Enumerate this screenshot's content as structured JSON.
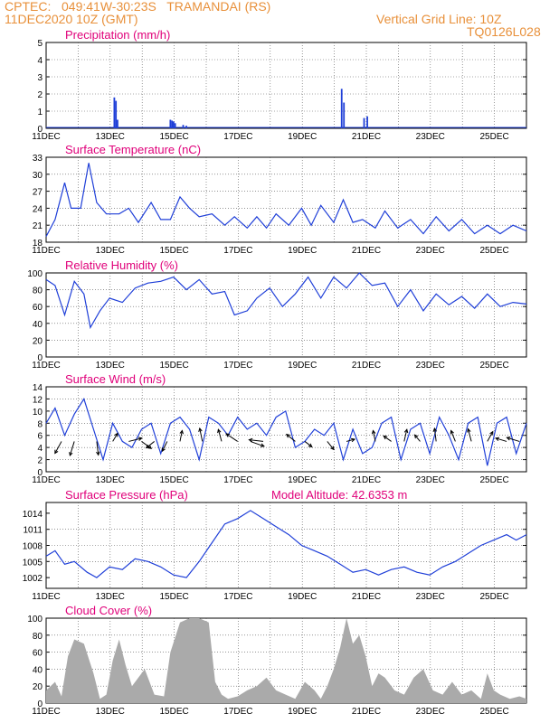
{
  "header": {
    "line1": "CPTEC:   049:41W-30:23S   TRAMANDAI (RS)",
    "line2": "11DEC2020 10Z (GMT)",
    "vgrid": "Vertical Grid Line: 10Z",
    "code": "TQ0126L028"
  },
  "colors": {
    "header": "#e8903a",
    "title": "#e0007a",
    "line": "#1f3fd8",
    "bar": "#1f3fd8",
    "cloud": "#aaaaaa"
  },
  "chart_data": [
    {
      "type": "bar",
      "title": "Precipitation (mm/h)",
      "x_tick_labels": [
        "11DEC",
        "13DEC",
        "15DEC",
        "17DEC",
        "19DEC",
        "21DEC",
        "23DEC",
        "25DEC"
      ],
      "x_range_days": [
        11.42,
        26.42
      ],
      "ylim": [
        0,
        5
      ],
      "y_ticks": [
        "0",
        "1",
        "2",
        "3",
        "4",
        "5"
      ],
      "x": [
        13.55,
        13.6,
        13.65,
        15.3,
        15.35,
        15.4,
        15.45,
        15.7,
        15.8,
        20.65,
        20.72,
        21.35,
        21.45
      ],
      "values": [
        1.8,
        1.6,
        0.5,
        0.5,
        0.45,
        0.4,
        0.3,
        0.2,
        0.15,
        2.3,
        1.5,
        0.6,
        0.7
      ]
    },
    {
      "type": "line",
      "title": "Surface Temperature (nC)",
      "x_tick_labels": [
        "11DEC",
        "13DEC",
        "15DEC",
        "17DEC",
        "19DEC",
        "21DEC",
        "23DEC",
        "25DEC"
      ],
      "x_range_days": [
        11.42,
        26.42
      ],
      "ylim": [
        18,
        33
      ],
      "y_ticks": [
        "18",
        "21",
        "24",
        "27",
        "30",
        "33"
      ],
      "x": [
        11.42,
        11.7,
        12.0,
        12.2,
        12.5,
        12.75,
        13.0,
        13.3,
        13.7,
        14.0,
        14.3,
        14.7,
        15.0,
        15.3,
        15.6,
        15.9,
        16.2,
        16.6,
        17.0,
        17.3,
        17.7,
        18.0,
        18.3,
        18.6,
        19.0,
        19.4,
        19.7,
        20.0,
        20.4,
        20.7,
        21.0,
        21.3,
        21.7,
        22.0,
        22.4,
        22.8,
        23.2,
        23.6,
        24.0,
        24.4,
        24.8,
        25.2,
        25.6,
        26.0,
        26.42
      ],
      "values": [
        19,
        22,
        28.5,
        24,
        24,
        32,
        25,
        23,
        23,
        24,
        21.5,
        25,
        22,
        22,
        26,
        24,
        22.5,
        23,
        21,
        22.5,
        20.5,
        22.5,
        20.5,
        23,
        21,
        24,
        21,
        24.5,
        21.5,
        25.5,
        21.5,
        22,
        20.5,
        23.5,
        20.5,
        22,
        19.5,
        22.5,
        20,
        22,
        19.5,
        21,
        19.5,
        21,
        20
      ]
    },
    {
      "type": "line",
      "title": "Relative Humidity (%)",
      "x_tick_labels": [
        "11DEC",
        "13DEC",
        "15DEC",
        "17DEC",
        "19DEC",
        "21DEC",
        "23DEC",
        "25DEC"
      ],
      "x_range_days": [
        11.42,
        26.42
      ],
      "ylim": [
        0,
        100
      ],
      "y_ticks": [
        "0",
        "20",
        "40",
        "60",
        "80",
        "100"
      ],
      "x": [
        11.42,
        11.7,
        12.0,
        12.3,
        12.6,
        12.8,
        13.1,
        13.4,
        13.8,
        14.2,
        14.6,
        15.0,
        15.4,
        15.8,
        16.2,
        16.6,
        17.0,
        17.3,
        17.7,
        18.0,
        18.4,
        18.8,
        19.2,
        19.6,
        20.0,
        20.4,
        20.8,
        21.2,
        21.6,
        22.0,
        22.4,
        22.8,
        23.2,
        23.6,
        24.0,
        24.4,
        24.8,
        25.2,
        25.6,
        26.0,
        26.42
      ],
      "values": [
        92,
        85,
        50,
        90,
        75,
        35,
        55,
        70,
        65,
        82,
        88,
        90,
        95,
        80,
        92,
        75,
        78,
        50,
        55,
        70,
        82,
        60,
        75,
        95,
        70,
        95,
        82,
        100,
        85,
        88,
        60,
        80,
        55,
        75,
        62,
        72,
        58,
        75,
        60,
        65,
        63
      ]
    },
    {
      "type": "line",
      "title": "Surface Wind (m/s)",
      "x_tick_labels": [
        "11DEC",
        "13DEC",
        "15DEC",
        "17DEC",
        "19DEC",
        "21DEC",
        "23DEC",
        "25DEC"
      ],
      "x_range_days": [
        11.42,
        26.42
      ],
      "ylim": [
        0,
        14
      ],
      "y_ticks": [
        "0",
        "2",
        "4",
        "6",
        "8",
        "10",
        "12",
        "14"
      ],
      "x": [
        11.42,
        11.7,
        12.0,
        12.3,
        12.6,
        12.9,
        13.2,
        13.5,
        13.8,
        14.1,
        14.4,
        14.7,
        15.0,
        15.3,
        15.6,
        15.9,
        16.2,
        16.5,
        16.8,
        17.1,
        17.4,
        17.7,
        18.0,
        18.3,
        18.6,
        18.9,
        19.2,
        19.5,
        19.8,
        20.1,
        20.4,
        20.7,
        21.0,
        21.3,
        21.6,
        21.9,
        22.2,
        22.5,
        22.8,
        23.1,
        23.4,
        23.7,
        24.0,
        24.3,
        24.6,
        24.9,
        25.2,
        25.5,
        25.8,
        26.1,
        26.42
      ],
      "values": [
        8,
        10.5,
        6,
        9.5,
        12,
        7,
        2,
        8,
        5,
        4,
        7,
        8,
        3,
        8,
        9,
        7,
        2,
        9,
        8,
        6,
        9,
        7,
        8,
        6,
        9,
        10,
        4,
        5,
        7,
        6,
        8,
        2,
        7,
        3,
        4,
        8,
        9,
        2,
        7,
        8,
        3,
        9,
        6,
        2,
        8,
        9,
        1,
        8,
        9,
        3,
        8
      ],
      "vectors": [
        {
          "day": 11.9,
          "u": -1.2,
          "v": -2.2
        },
        {
          "day": 12.3,
          "u": -0.8,
          "v": -2.6
        },
        {
          "day": 13.0,
          "u": 0.3,
          "v": -2.5
        },
        {
          "day": 13.5,
          "u": 0.9,
          "v": 1.5
        },
        {
          "day": 14.0,
          "u": 2.4,
          "v": 0.6
        },
        {
          "day": 14.4,
          "u": 1.8,
          "v": -1.3
        },
        {
          "day": 14.8,
          "u": -1.5,
          "v": -1.2
        },
        {
          "day": 15.2,
          "u": -0.9,
          "v": -1.8
        },
        {
          "day": 15.6,
          "u": 0.4,
          "v": 2.0
        },
        {
          "day": 16.3,
          "u": -0.5,
          "v": 2.4
        },
        {
          "day": 16.9,
          "u": -0.6,
          "v": 2.2
        },
        {
          "day": 17.4,
          "u": -2.1,
          "v": 1.4
        },
        {
          "day": 17.8,
          "u": 2.5,
          "v": -0.9
        },
        {
          "day": 18.2,
          "u": -2.6,
          "v": 0.3
        },
        {
          "day": 19.2,
          "u": -1.6,
          "v": 1.3
        },
        {
          "day": 19.5,
          "u": 1.3,
          "v": -1.0
        },
        {
          "day": 20.2,
          "u": 1.2,
          "v": -1.5
        },
        {
          "day": 20.8,
          "u": 1.5,
          "v": 0.4
        },
        {
          "day": 21.7,
          "u": -0.4,
          "v": 2.0
        },
        {
          "day": 22.2,
          "u": -1.4,
          "v": 1.0
        },
        {
          "day": 22.6,
          "u": 0.5,
          "v": 2.2
        },
        {
          "day": 23.1,
          "u": -1.0,
          "v": 1.2
        },
        {
          "day": 23.6,
          "u": -0.3,
          "v": 2.4
        },
        {
          "day": 24.2,
          "u": -0.8,
          "v": 2.0
        },
        {
          "day": 24.7,
          "u": -0.6,
          "v": 2.3
        },
        {
          "day": 25.2,
          "u": 1.0,
          "v": 1.8
        },
        {
          "day": 25.8,
          "u": -2.0,
          "v": 0.6
        },
        {
          "day": 26.2,
          "u": -2.3,
          "v": 0.7
        }
      ]
    },
    {
      "type": "line",
      "title": "Surface Pressure (hPa)",
      "annotation": "Model Altitude: 42.6353 m",
      "x_tick_labels": [
        "11DEC",
        "13DEC",
        "15DEC",
        "17DEC",
        "19DEC",
        "21DEC",
        "23DEC",
        "25DEC"
      ],
      "x_range_days": [
        11.42,
        26.42
      ],
      "ylim": [
        1000,
        1016
      ],
      "y_ticks": [
        "1002",
        "1005",
        "1008",
        "1011",
        "1014"
      ],
      "y_tick_values": [
        1002,
        1005,
        1008,
        1011,
        1014
      ],
      "x": [
        11.42,
        11.7,
        12.0,
        12.3,
        12.7,
        13.0,
        13.4,
        13.8,
        14.2,
        14.6,
        15.0,
        15.4,
        15.8,
        16.2,
        16.6,
        17.0,
        17.4,
        17.8,
        18.2,
        18.6,
        19.0,
        19.4,
        19.8,
        20.2,
        20.6,
        21.0,
        21.4,
        21.8,
        22.2,
        22.6,
        23.0,
        23.4,
        23.8,
        24.2,
        24.6,
        25.0,
        25.4,
        25.8,
        26.1,
        26.42
      ],
      "values": [
        1006,
        1007,
        1004.5,
        1005,
        1003,
        1002,
        1004,
        1003.5,
        1005.5,
        1005,
        1004,
        1002.5,
        1002,
        1005,
        1008.5,
        1012,
        1013,
        1014.5,
        1013,
        1011.5,
        1010,
        1008,
        1007,
        1006,
        1004.5,
        1003,
        1003.5,
        1002.5,
        1003.5,
        1004,
        1003,
        1002.5,
        1004,
        1005,
        1006.5,
        1008,
        1009,
        1010,
        1009,
        1010
      ]
    },
    {
      "type": "area",
      "title": "Cloud Cover (%)",
      "x_tick_labels": [
        "11DEC",
        "13DEC",
        "15DEC",
        "17DEC",
        "19DEC",
        "21DEC",
        "23DEC",
        "25DEC"
      ],
      "x_range_days": [
        11.42,
        26.42
      ],
      "ylim": [
        0,
        100
      ],
      "y_ticks": [
        "0",
        "20",
        "40",
        "60",
        "80",
        "100"
      ],
      "x": [
        11.42,
        11.7,
        11.9,
        12.1,
        12.3,
        12.6,
        12.9,
        13.1,
        13.3,
        13.5,
        13.7,
        13.9,
        14.1,
        14.3,
        14.5,
        14.8,
        15.1,
        15.3,
        15.6,
        15.9,
        16.2,
        16.5,
        16.7,
        16.9,
        17.1,
        17.4,
        17.7,
        18.0,
        18.3,
        18.6,
        18.9,
        19.2,
        19.5,
        19.8,
        20.0,
        20.2,
        20.4,
        20.6,
        20.8,
        21.0,
        21.2,
        21.4,
        21.6,
        21.8,
        22.0,
        22.3,
        22.6,
        22.9,
        23.2,
        23.5,
        23.8,
        24.1,
        24.4,
        24.7,
        25.0,
        25.2,
        25.4,
        25.6,
        25.9,
        26.2,
        26.42
      ],
      "values": [
        15,
        25,
        8,
        55,
        75,
        70,
        35,
        5,
        10,
        50,
        75,
        45,
        20,
        30,
        40,
        10,
        8,
        60,
        95,
        100,
        100,
        95,
        25,
        10,
        5,
        8,
        15,
        20,
        30,
        15,
        10,
        5,
        25,
        15,
        5,
        20,
        40,
        65,
        100,
        70,
        80,
        55,
        20,
        35,
        30,
        15,
        10,
        30,
        40,
        15,
        10,
        25,
        10,
        15,
        5,
        35,
        15,
        10,
        5,
        8,
        5
      ]
    }
  ]
}
